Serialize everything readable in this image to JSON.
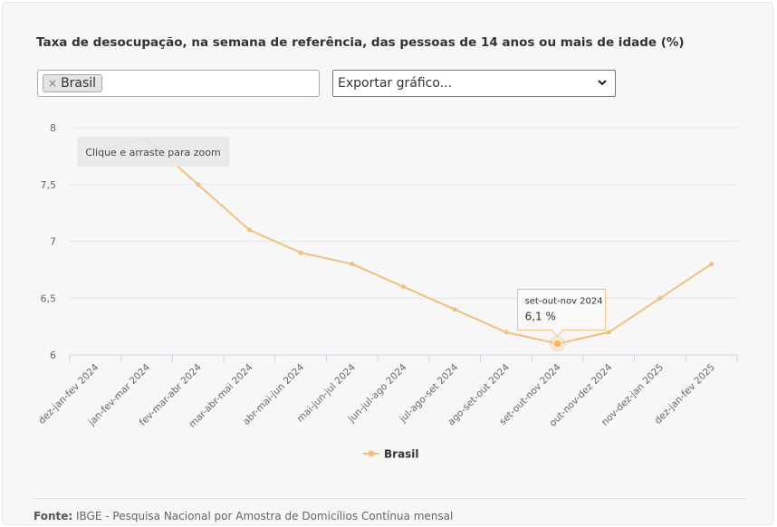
{
  "header": {
    "title": "Taxa de desocupação, na semana de referência, das pessoas de 14 anos ou mais de idade (%)"
  },
  "filter": {
    "chip_remove": "×",
    "chip_label": "Brasil"
  },
  "export_select": {
    "label": "Exportar gráfico..."
  },
  "zoom_hint": "Clique e arraste para zoom",
  "tooltip": {
    "label": "set-out-nov 2024",
    "value": "6,1 %"
  },
  "footer": {
    "source_label": "Fonte:",
    "source_text": "IBGE - Pesquisa Nacional por Amostra de Domicílios Contínua mensal"
  },
  "colors": {
    "series": "#f2c07e",
    "highlight": "#f5b766"
  },
  "chart_data": {
    "type": "line",
    "categories": [
      "dez-jan-fev 2024",
      "jan-fev-mar 2024",
      "fev-mar-abr 2024",
      "mar-abr-mai 2024",
      "abr-mai-jun 2024",
      "mai-jun-jul 2024",
      "jun-jul-ago 2024",
      "jul-ago-set 2024",
      "ago-set-out 2024",
      "set-out-nov 2024",
      "out-nov-dez 2024",
      "nov-dez-jan 2025",
      "dez-jan-fev 2025"
    ],
    "series": [
      {
        "name": "Brasil",
        "values": [
          7.8,
          7.9,
          7.5,
          7.1,
          6.9,
          6.8,
          6.6,
          6.4,
          6.2,
          6.1,
          6.2,
          6.5,
          6.8
        ]
      }
    ],
    "yticks": [
      "6",
      "6,5",
      "7",
      "7,5",
      "8"
    ],
    "ytick_values": [
      6,
      6.5,
      7,
      7.5,
      8
    ],
    "ylim": [
      6,
      8
    ],
    "grid": true,
    "legend_position": "bottom-center",
    "highlight_index": 9
  }
}
